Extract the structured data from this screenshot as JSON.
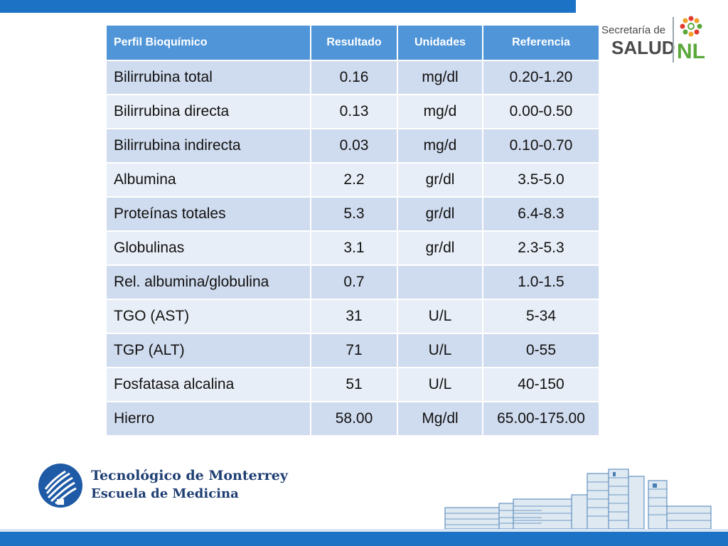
{
  "table": {
    "headers": [
      "Perfil Bioquímico",
      "Resultado",
      "Unidades",
      "Referencia"
    ],
    "rows": [
      [
        "Bilirrubina total",
        "0.16",
        "mg/dl",
        "0.20-1.20"
      ],
      [
        "Bilirrubina directa",
        "0.13",
        "mg/d",
        "0.00-0.50"
      ],
      [
        "Bilirrubina indirecta",
        "0.03",
        "mg/d",
        "0.10-0.70"
      ],
      [
        "Albumina",
        "2.2",
        "gr/dl",
        "3.5-5.0"
      ],
      [
        "Proteínas totales",
        "5.3",
        "gr/dl",
        "6.4-8.3"
      ],
      [
        "Globulinas",
        "3.1",
        "gr/dl",
        "2.3-5.3"
      ],
      [
        "Rel. albumina/globulina",
        "0.7",
        "",
        "1.0-1.5"
      ],
      [
        "TGO (AST)",
        "31",
        "U/L",
        "5-34"
      ],
      [
        "TGP (ALT)",
        "71",
        "U/L",
        "0-55"
      ],
      [
        "Fosfatasa alcalina",
        "51",
        "U/L",
        "40-150"
      ],
      [
        "Hierro",
        "58.00",
        "Mg/dl",
        "65.00-175.00"
      ]
    ]
  },
  "logos": {
    "secretaria_line1": "Secretaría de",
    "secretaria_line2": "SALUD",
    "secretaria_state": "NL",
    "tec_line1": "Tecnológico de Monterrey",
    "tec_line2": "Escuela de Medicina"
  },
  "colors": {
    "bar_blue": "#1c73c6",
    "header_blue": "#4f95d8",
    "row_dark": "#cfdbee",
    "row_light": "#e8eef7",
    "nl_green": "#5aa83a",
    "tec_navy": "#1f3f73"
  }
}
